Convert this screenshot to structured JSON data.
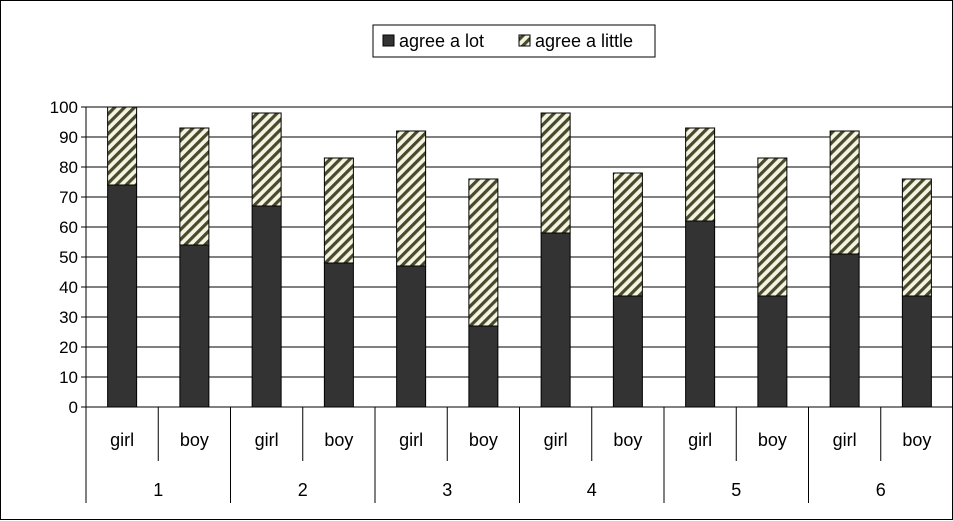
{
  "chart_data": {
    "type": "bar",
    "stacked": true,
    "categories": [
      "girl",
      "boy",
      "girl",
      "boy",
      "girl",
      "boy",
      "girl",
      "boy",
      "girl",
      "boy",
      "girl",
      "boy"
    ],
    "groups": [
      "1",
      "2",
      "3",
      "4",
      "5",
      "6"
    ],
    "series": [
      {
        "name": "agree a lot",
        "color": "#333333",
        "pattern": "solid",
        "values": [
          74,
          54,
          67,
          48,
          47,
          27,
          58,
          37,
          62,
          37,
          51,
          37
        ]
      },
      {
        "name": "agree a little",
        "color": "#4a4a2a",
        "pattern": "diagonal-hatch",
        "values": [
          26,
          39,
          31,
          35,
          45,
          49,
          40,
          41,
          31,
          46,
          41,
          39
        ]
      }
    ],
    "ylim": [
      0,
      100
    ],
    "yticks": [
      0,
      10,
      20,
      30,
      40,
      50,
      60,
      70,
      80,
      90,
      100
    ],
    "grid": true,
    "legend_position": "top"
  }
}
